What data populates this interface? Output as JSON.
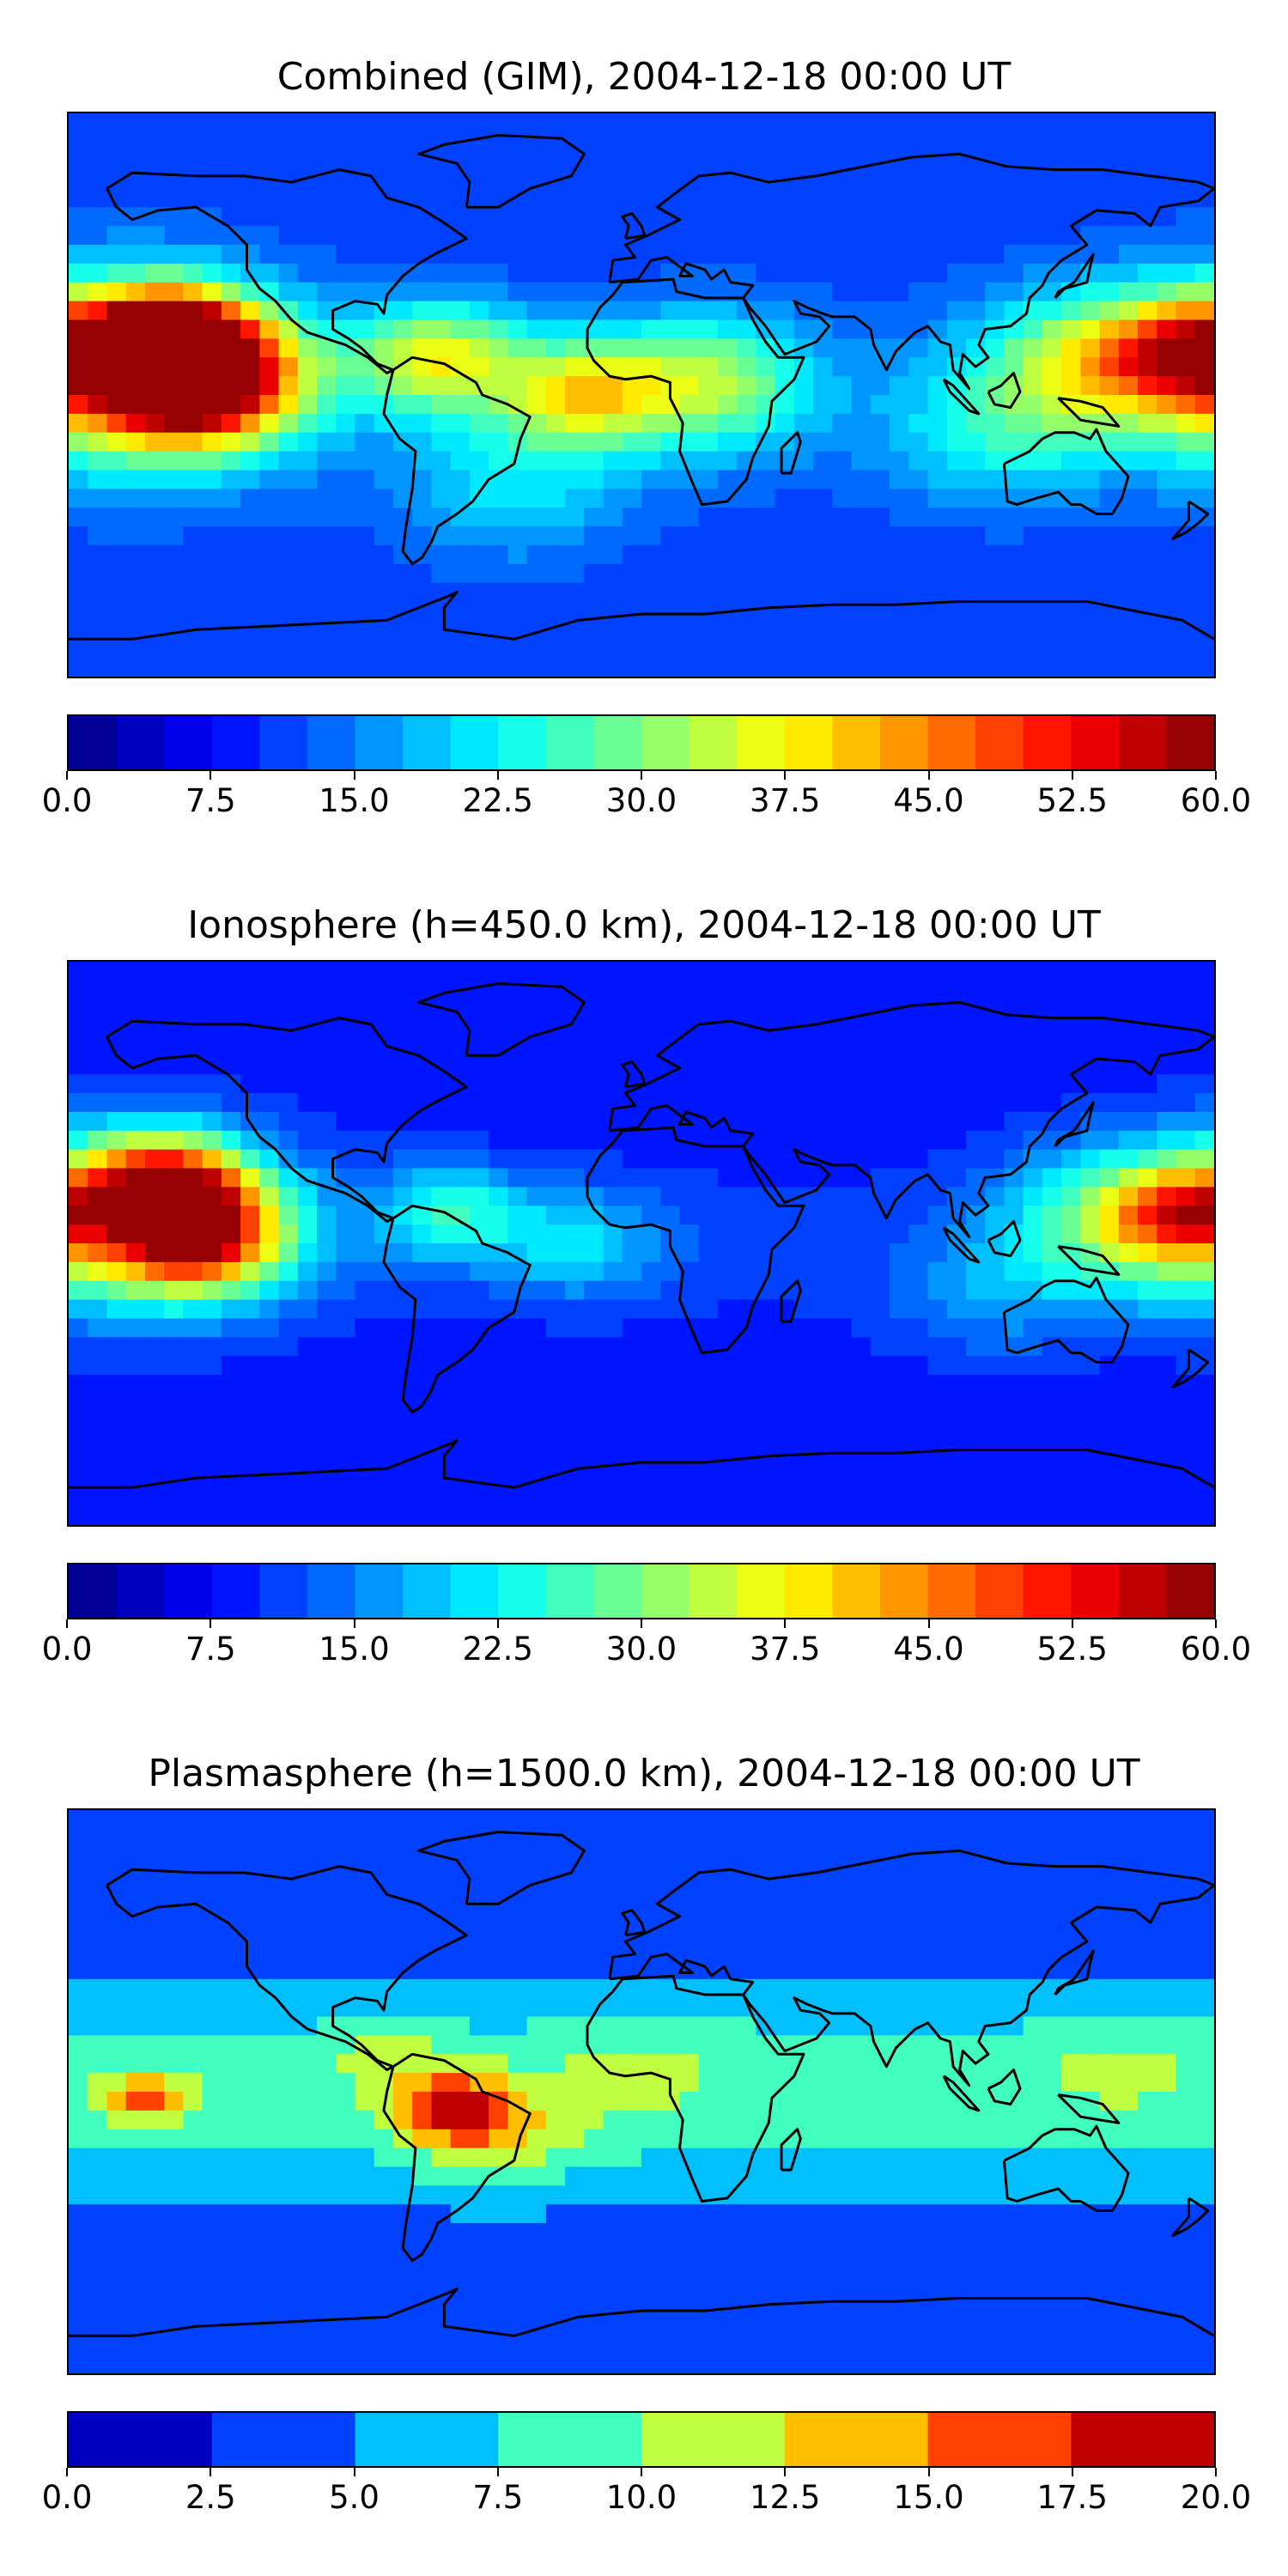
{
  "chart_data": [
    {
      "type": "heatmap",
      "title": "Combined (GIM), 2004-12-18 00:00 UT",
      "colormap": "jet",
      "levels": [
        0.0,
        2.5,
        5.0,
        7.5,
        10.0,
        12.5,
        15.0,
        17.5,
        20.0,
        22.5,
        25.0,
        27.5,
        30.0,
        32.5,
        35.0,
        37.5,
        40.0,
        42.5,
        45.0,
        47.5,
        50.0,
        52.5,
        55.0,
        57.5,
        60.0
      ],
      "colorbar_ticks": [
        "0.0",
        "7.5",
        "15.0",
        "22.5",
        "30.0",
        "37.5",
        "45.0",
        "52.5",
        "60.0"
      ],
      "colorbar_range": [
        0,
        60
      ],
      "x_range_lon": [
        -180,
        180
      ],
      "y_range_lat": [
        -90,
        90
      ],
      "features": [
        {
          "lon": -140,
          "lat": 5,
          "value": 57,
          "spread": 20
        },
        {
          "lon": -150,
          "lat": 18,
          "value": 48,
          "spread": 16
        },
        {
          "lon": -160,
          "lat": 8,
          "value": 38,
          "spread": 32
        },
        {
          "lon": -65,
          "lat": 12,
          "value": 34,
          "spread": 18
        },
        {
          "lon": -20,
          "lat": 0,
          "value": 32,
          "spread": 18
        },
        {
          "lon": 20,
          "lat": 4,
          "value": 30,
          "spread": 22
        },
        {
          "lon": 140,
          "lat": 10,
          "value": 30,
          "spread": 24
        },
        {
          "lon": 170,
          "lat": 14,
          "value": 32,
          "spread": 16
        },
        {
          "lon": 110,
          "lat": -15,
          "value": 20,
          "spread": 22
        },
        {
          "lon": -40,
          "lat": -30,
          "value": 20,
          "spread": 24
        }
      ],
      "background_value": 11
    },
    {
      "type": "heatmap",
      "title": "Ionosphere  (h=450.0 km), 2004-12-18 00:00 UT",
      "colormap": "jet",
      "levels": [
        0.0,
        2.5,
        5.0,
        7.5,
        10.0,
        12.5,
        15.0,
        17.5,
        20.0,
        22.5,
        25.0,
        27.5,
        30.0,
        32.5,
        35.0,
        37.5,
        40.0,
        42.5,
        45.0,
        47.5,
        50.0,
        52.5,
        55.0,
        57.5,
        60.0
      ],
      "colorbar_ticks": [
        "0.0",
        "7.5",
        "15.0",
        "22.5",
        "30.0",
        "37.5",
        "45.0",
        "52.5",
        "60.0"
      ],
      "colorbar_range": [
        0,
        60
      ],
      "x_range_lon": [
        -180,
        180
      ],
      "y_range_lat": [
        -90,
        90
      ],
      "features": [
        {
          "lon": -140,
          "lat": 3,
          "value": 47,
          "spread": 18
        },
        {
          "lon": -150,
          "lat": 20,
          "value": 38,
          "spread": 16
        },
        {
          "lon": -160,
          "lat": 8,
          "value": 28,
          "spread": 32
        },
        {
          "lon": -60,
          "lat": 10,
          "value": 22,
          "spread": 16
        },
        {
          "lon": -20,
          "lat": 0,
          "value": 18,
          "spread": 18
        },
        {
          "lon": 150,
          "lat": 8,
          "value": 25,
          "spread": 24
        },
        {
          "lon": 170,
          "lat": 10,
          "value": 28,
          "spread": 14
        },
        {
          "lon": 110,
          "lat": -18,
          "value": 14,
          "spread": 22
        }
      ],
      "background_value": 8
    },
    {
      "type": "heatmap",
      "title": "Plasmasphere (h=1500.0 km), 2004-12-18 00:00 UT",
      "colormap": "jet",
      "levels": [
        0.0,
        2.5,
        5.0,
        7.5,
        10.0,
        12.5,
        15.0,
        17.5,
        20.0
      ],
      "colorbar_ticks": [
        "0.0",
        "2.5",
        "5.0",
        "7.5",
        "10.0",
        "12.5",
        "15.0",
        "17.5",
        "20.0"
      ],
      "colorbar_range": [
        0,
        20
      ],
      "x_range_lon": [
        -180,
        180
      ],
      "y_range_lat": [
        -90,
        90
      ],
      "features": [
        {
          "lon": -60,
          "lat": -5,
          "value": 14.5,
          "spread": 12
        },
        {
          "lon": -155,
          "lat": -2,
          "value": 13.5,
          "spread": 9
        },
        {
          "lon": -45,
          "lat": -15,
          "value": 10.5,
          "spread": 18
        },
        {
          "lon": -80,
          "lat": 12,
          "value": 9,
          "spread": 14
        },
        {
          "lon": 0,
          "lat": 10,
          "value": 8.5,
          "spread": 22
        },
        {
          "lon": 150,
          "lat": 10,
          "value": 8.5,
          "spread": 20
        }
      ],
      "background_value": 6,
      "lat_falloff": true
    }
  ]
}
